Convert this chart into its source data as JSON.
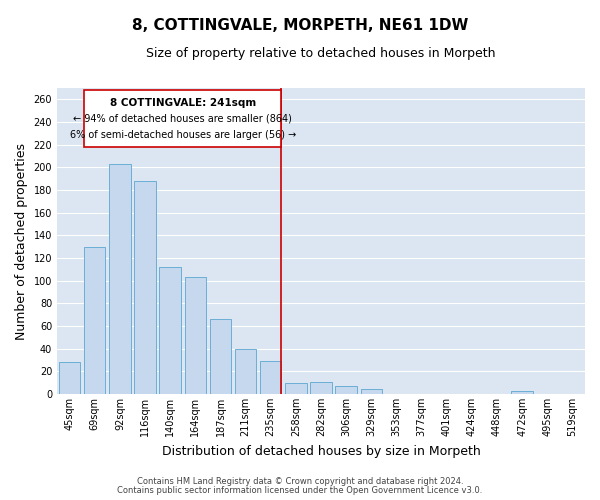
{
  "title": "8, COTTINGVALE, MORPETH, NE61 1DW",
  "subtitle": "Size of property relative to detached houses in Morpeth",
  "xlabel": "Distribution of detached houses by size in Morpeth",
  "ylabel": "Number of detached properties",
  "bar_labels": [
    "45sqm",
    "69sqm",
    "92sqm",
    "116sqm",
    "140sqm",
    "164sqm",
    "187sqm",
    "211sqm",
    "235sqm",
    "258sqm",
    "282sqm",
    "306sqm",
    "329sqm",
    "353sqm",
    "377sqm",
    "401sqm",
    "424sqm",
    "448sqm",
    "472sqm",
    "495sqm",
    "519sqm"
  ],
  "bar_values": [
    28,
    130,
    203,
    188,
    112,
    103,
    66,
    40,
    29,
    10,
    11,
    7,
    4,
    0,
    0,
    0,
    0,
    0,
    3,
    0,
    0
  ],
  "bar_color": "#c5d8ee",
  "bar_edge_color": "#6baed6",
  "vline_color": "#cc0000",
  "annotation_text_line1": "8 COTTINGVALE: 241sqm",
  "annotation_text_line2": "← 94% of detached houses are smaller (864)",
  "annotation_text_line3": "6% of semi-detached houses are larger (56) →",
  "annotation_box_facecolor": "#ffffff",
  "annotation_box_edgecolor": "#cc0000",
  "ylim": [
    0,
    270
  ],
  "yticks": [
    0,
    20,
    40,
    60,
    80,
    100,
    120,
    140,
    160,
    180,
    200,
    220,
    240,
    260
  ],
  "footer_line1": "Contains HM Land Registry data © Crown copyright and database right 2024.",
  "footer_line2": "Contains public sector information licensed under the Open Government Licence v3.0.",
  "plot_bg_color": "#dce6f2",
  "fig_bg_color": "#ffffff",
  "grid_color": "#ffffff",
  "title_fontsize": 11,
  "subtitle_fontsize": 9,
  "tick_fontsize": 7,
  "ylabel_fontsize": 9,
  "xlabel_fontsize": 9,
  "footer_fontsize": 6
}
